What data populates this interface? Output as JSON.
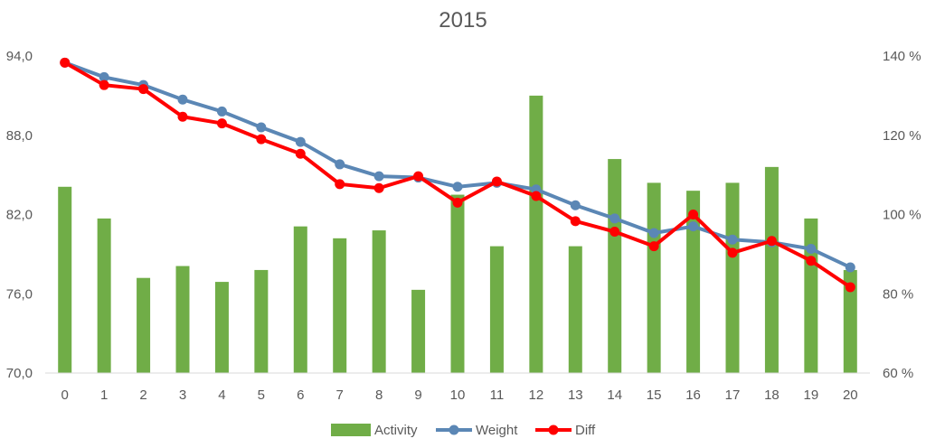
{
  "chart_data": {
    "type": "bar",
    "title": "2015",
    "categories": [
      "0",
      "1",
      "2",
      "3",
      "4",
      "5",
      "6",
      "7",
      "8",
      "9",
      "10",
      "11",
      "12",
      "13",
      "14",
      "15",
      "16",
      "17",
      "18",
      "19",
      "20"
    ],
    "y_left": {
      "ticks": [
        "70,0",
        "76,0",
        "82,0",
        "88,0",
        "94,0"
      ],
      "min": 70,
      "max": 94
    },
    "y_right": {
      "ticks": [
        "60 %",
        "80 %",
        "100 %",
        "120 %",
        "140 %"
      ],
      "min": 60,
      "max": 140
    },
    "grid": false,
    "legend_position": "bottom",
    "series": [
      {
        "name": "Activity",
        "kind": "bar",
        "axis": "right",
        "color": "#70ad47",
        "values": [
          107,
          99,
          84,
          87,
          83,
          86,
          97,
          94,
          96,
          81,
          105,
          92,
          130,
          92,
          114,
          108,
          106,
          108,
          112,
          99,
          86
        ]
      },
      {
        "name": "Weight",
        "kind": "line",
        "axis": "left",
        "color": "#5b87b5",
        "values": [
          93.5,
          92.4,
          91.8,
          90.7,
          89.8,
          88.6,
          87.5,
          85.8,
          84.9,
          84.8,
          84.1,
          84.4,
          83.9,
          82.7,
          81.7,
          80.6,
          81.1,
          80.1,
          79.9,
          79.4,
          78.0
        ]
      },
      {
        "name": "Diff",
        "kind": "line",
        "axis": "left",
        "color": "#ff0000",
        "values": [
          93.5,
          91.8,
          91.5,
          89.4,
          88.9,
          87.7,
          86.6,
          84.3,
          84.0,
          84.9,
          82.9,
          84.5,
          83.4,
          81.5,
          80.7,
          79.6,
          82.0,
          79.1,
          80.0,
          78.5,
          76.5
        ]
      }
    ]
  }
}
